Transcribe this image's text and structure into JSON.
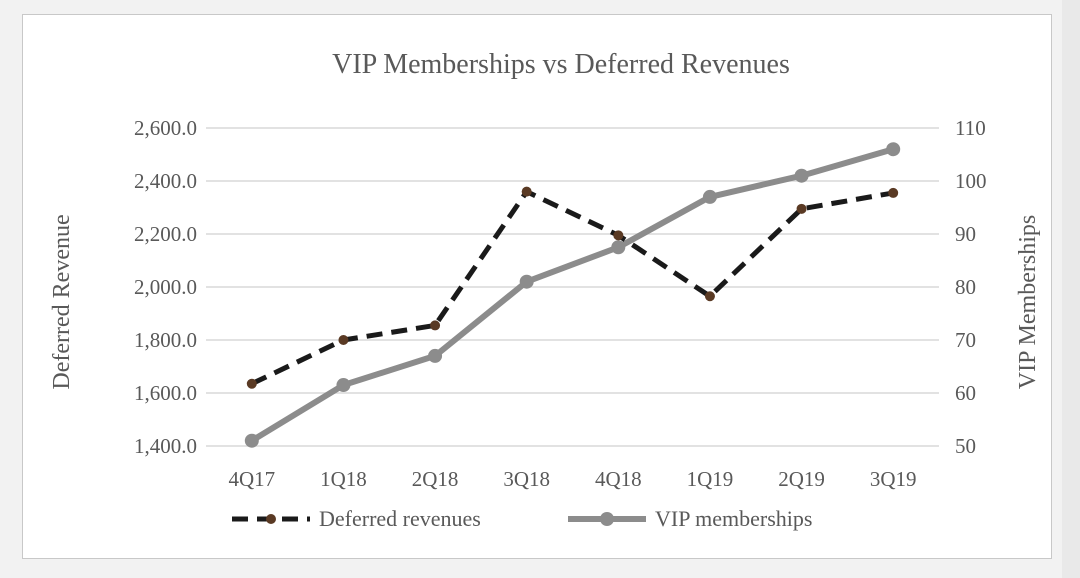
{
  "chart_data": {
    "type": "line",
    "title": "VIP  Memberships vs Deferred Revenues",
    "categories": [
      "4Q17",
      "1Q18",
      "2Q18",
      "3Q18",
      "4Q18",
      "1Q19",
      "2Q19",
      "3Q19"
    ],
    "y_left": {
      "label": "Deferred Revenue",
      "ticks": [
        "1,400.0",
        "1,600.0",
        "1,800.0",
        "2,000.0",
        "2,200.0",
        "2,400.0",
        "2,600.0"
      ],
      "range": [
        1400,
        2600
      ]
    },
    "y_right": {
      "label": "VIP Memberships",
      "ticks": [
        "50",
        "60",
        "70",
        "80",
        "90",
        "100",
        "110"
      ],
      "range": [
        50,
        110
      ]
    },
    "grid": true,
    "legend_position": "bottom",
    "series": [
      {
        "name": "Deferred revenues",
        "axis": "left",
        "style": "dashed",
        "color": "#1a1a1a",
        "marker_color": "#5a3a24",
        "values": [
          1635,
          1800,
          1855,
          2360,
          2195,
          1965,
          2295,
          2355
        ]
      },
      {
        "name": "VIP memberships",
        "axis": "right",
        "style": "solid",
        "color": "#8c8c8c",
        "marker_color": "#8c8c8c",
        "values": [
          51,
          61.5,
          67,
          81,
          87.5,
          97,
          101,
          106
        ]
      }
    ]
  }
}
